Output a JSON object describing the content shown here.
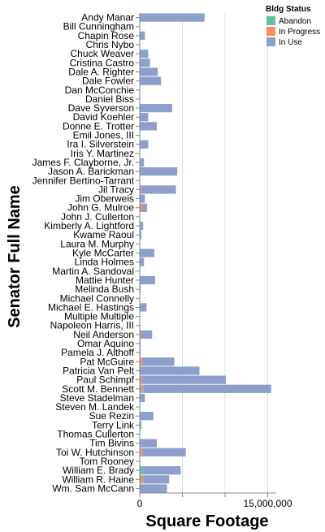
{
  "chart_data": {
    "type": "bar",
    "stacked": true,
    "orientation": "horizontal",
    "xlabel": "Square Footage",
    "ylabel": "Senator Full Name",
    "xlim": [
      0,
      16000000
    ],
    "x_ticks": [
      0,
      5000000,
      10000000,
      15000000
    ],
    "x_tick_labels": [
      "0",
      "",
      "",
      "15,000,000"
    ],
    "grid": true,
    "legend": {
      "title": "Bldg Status",
      "position": "top-right",
      "items": [
        {
          "name": "Abandon",
          "color": "#66c2a5"
        },
        {
          "name": "In Progress",
          "color": "#fc8d62"
        },
        {
          "name": "In Use",
          "color": "#8da0cb"
        }
      ]
    },
    "categories": [
      "Andy Manar",
      "Bill Cunningham",
      "Chapin Rose",
      "Chris Nybo",
      "Chuck Weaver",
      "Cristina Castro",
      "Dale A. Righter",
      "Dale Fowler",
      "Dan McConchie",
      "Daniel Biss",
      "Dave Syverson",
      "David Koehler",
      "Donne E. Trotter",
      "Emil Jones, III",
      "Ira I. Silverstein",
      "Iris Y. Martinez",
      "James F. Clayborne, Jr.",
      "Jason A. Barickman",
      "Jennifer Bertino-Tarrant",
      "Jil Tracy",
      "Jim Oberweis",
      "John G. Mulroe",
      "John J. Cullerton",
      "Kimberly A. Lightford",
      "Kwame Raoul",
      "Laura M. Murphy",
      "Kyle McCarter",
      "Linda Holmes",
      "Martin A. Sandoval",
      "Mattie Hunter",
      "Melinda Bush",
      "Michael Connelly",
      "Michael E. Hastings",
      "Multiple Multiple",
      "Napoleon Harris, III",
      "Neil Anderson",
      "Omar Aquino",
      "Pamela J. Althoff",
      "Pat McGuire",
      "Patricia Van Pelt",
      "Paul Schimpf",
      "Scott M. Bennett",
      "Steve Stadelman",
      "Steven M. Landek",
      "Sue Rezin",
      "Terry Link",
      "Thomas Cullerton",
      "Tim Bivins",
      "Toi W. Hutchinson",
      "Tom Rooney",
      "William E. Brady",
      "William R. Haine",
      "Wm. Sam McCann"
    ],
    "series": [
      {
        "name": "Abandon",
        "values": [
          0,
          0,
          0,
          0,
          0,
          0,
          0,
          0,
          0,
          0,
          0,
          0,
          0,
          0,
          0,
          0,
          0,
          0,
          0,
          0,
          0,
          0,
          0,
          0,
          0,
          0,
          0,
          0,
          0,
          0,
          0,
          0,
          0,
          0,
          0,
          0,
          0,
          0,
          0,
          0,
          0,
          200000,
          0,
          0,
          0,
          0,
          0,
          0,
          0,
          0,
          400000,
          200000,
          0
        ]
      },
      {
        "name": "In Progress",
        "values": [
          0,
          0,
          0,
          0,
          0,
          0,
          0,
          0,
          0,
          0,
          0,
          0,
          0,
          0,
          0,
          0,
          100000,
          0,
          0,
          150000,
          0,
          250000,
          0,
          0,
          0,
          0,
          0,
          0,
          0,
          0,
          0,
          0,
          0,
          0,
          0,
          150000,
          0,
          0,
          250000,
          0,
          200000,
          200000,
          0,
          0,
          0,
          0,
          0,
          0,
          300000,
          0,
          0,
          250000,
          0
        ]
      },
      {
        "name": "In Use",
        "values": [
          7600000,
          0,
          600000,
          0,
          1000000,
          1200000,
          2100000,
          2500000,
          0,
          0,
          3800000,
          1000000,
          2000000,
          0,
          1000000,
          0,
          400000,
          4400000,
          0,
          4100000,
          600000,
          600000,
          0,
          400000,
          200000,
          0,
          1700000,
          500000,
          0,
          1800000,
          100000,
          0,
          800000,
          0,
          0,
          1300000,
          100000,
          100000,
          3800000,
          7000000,
          9900000,
          15000000,
          600000,
          0,
          1600000,
          200000,
          0,
          2000000,
          5100000,
          0,
          4400000,
          3000000,
          3200000
        ]
      }
    ]
  }
}
